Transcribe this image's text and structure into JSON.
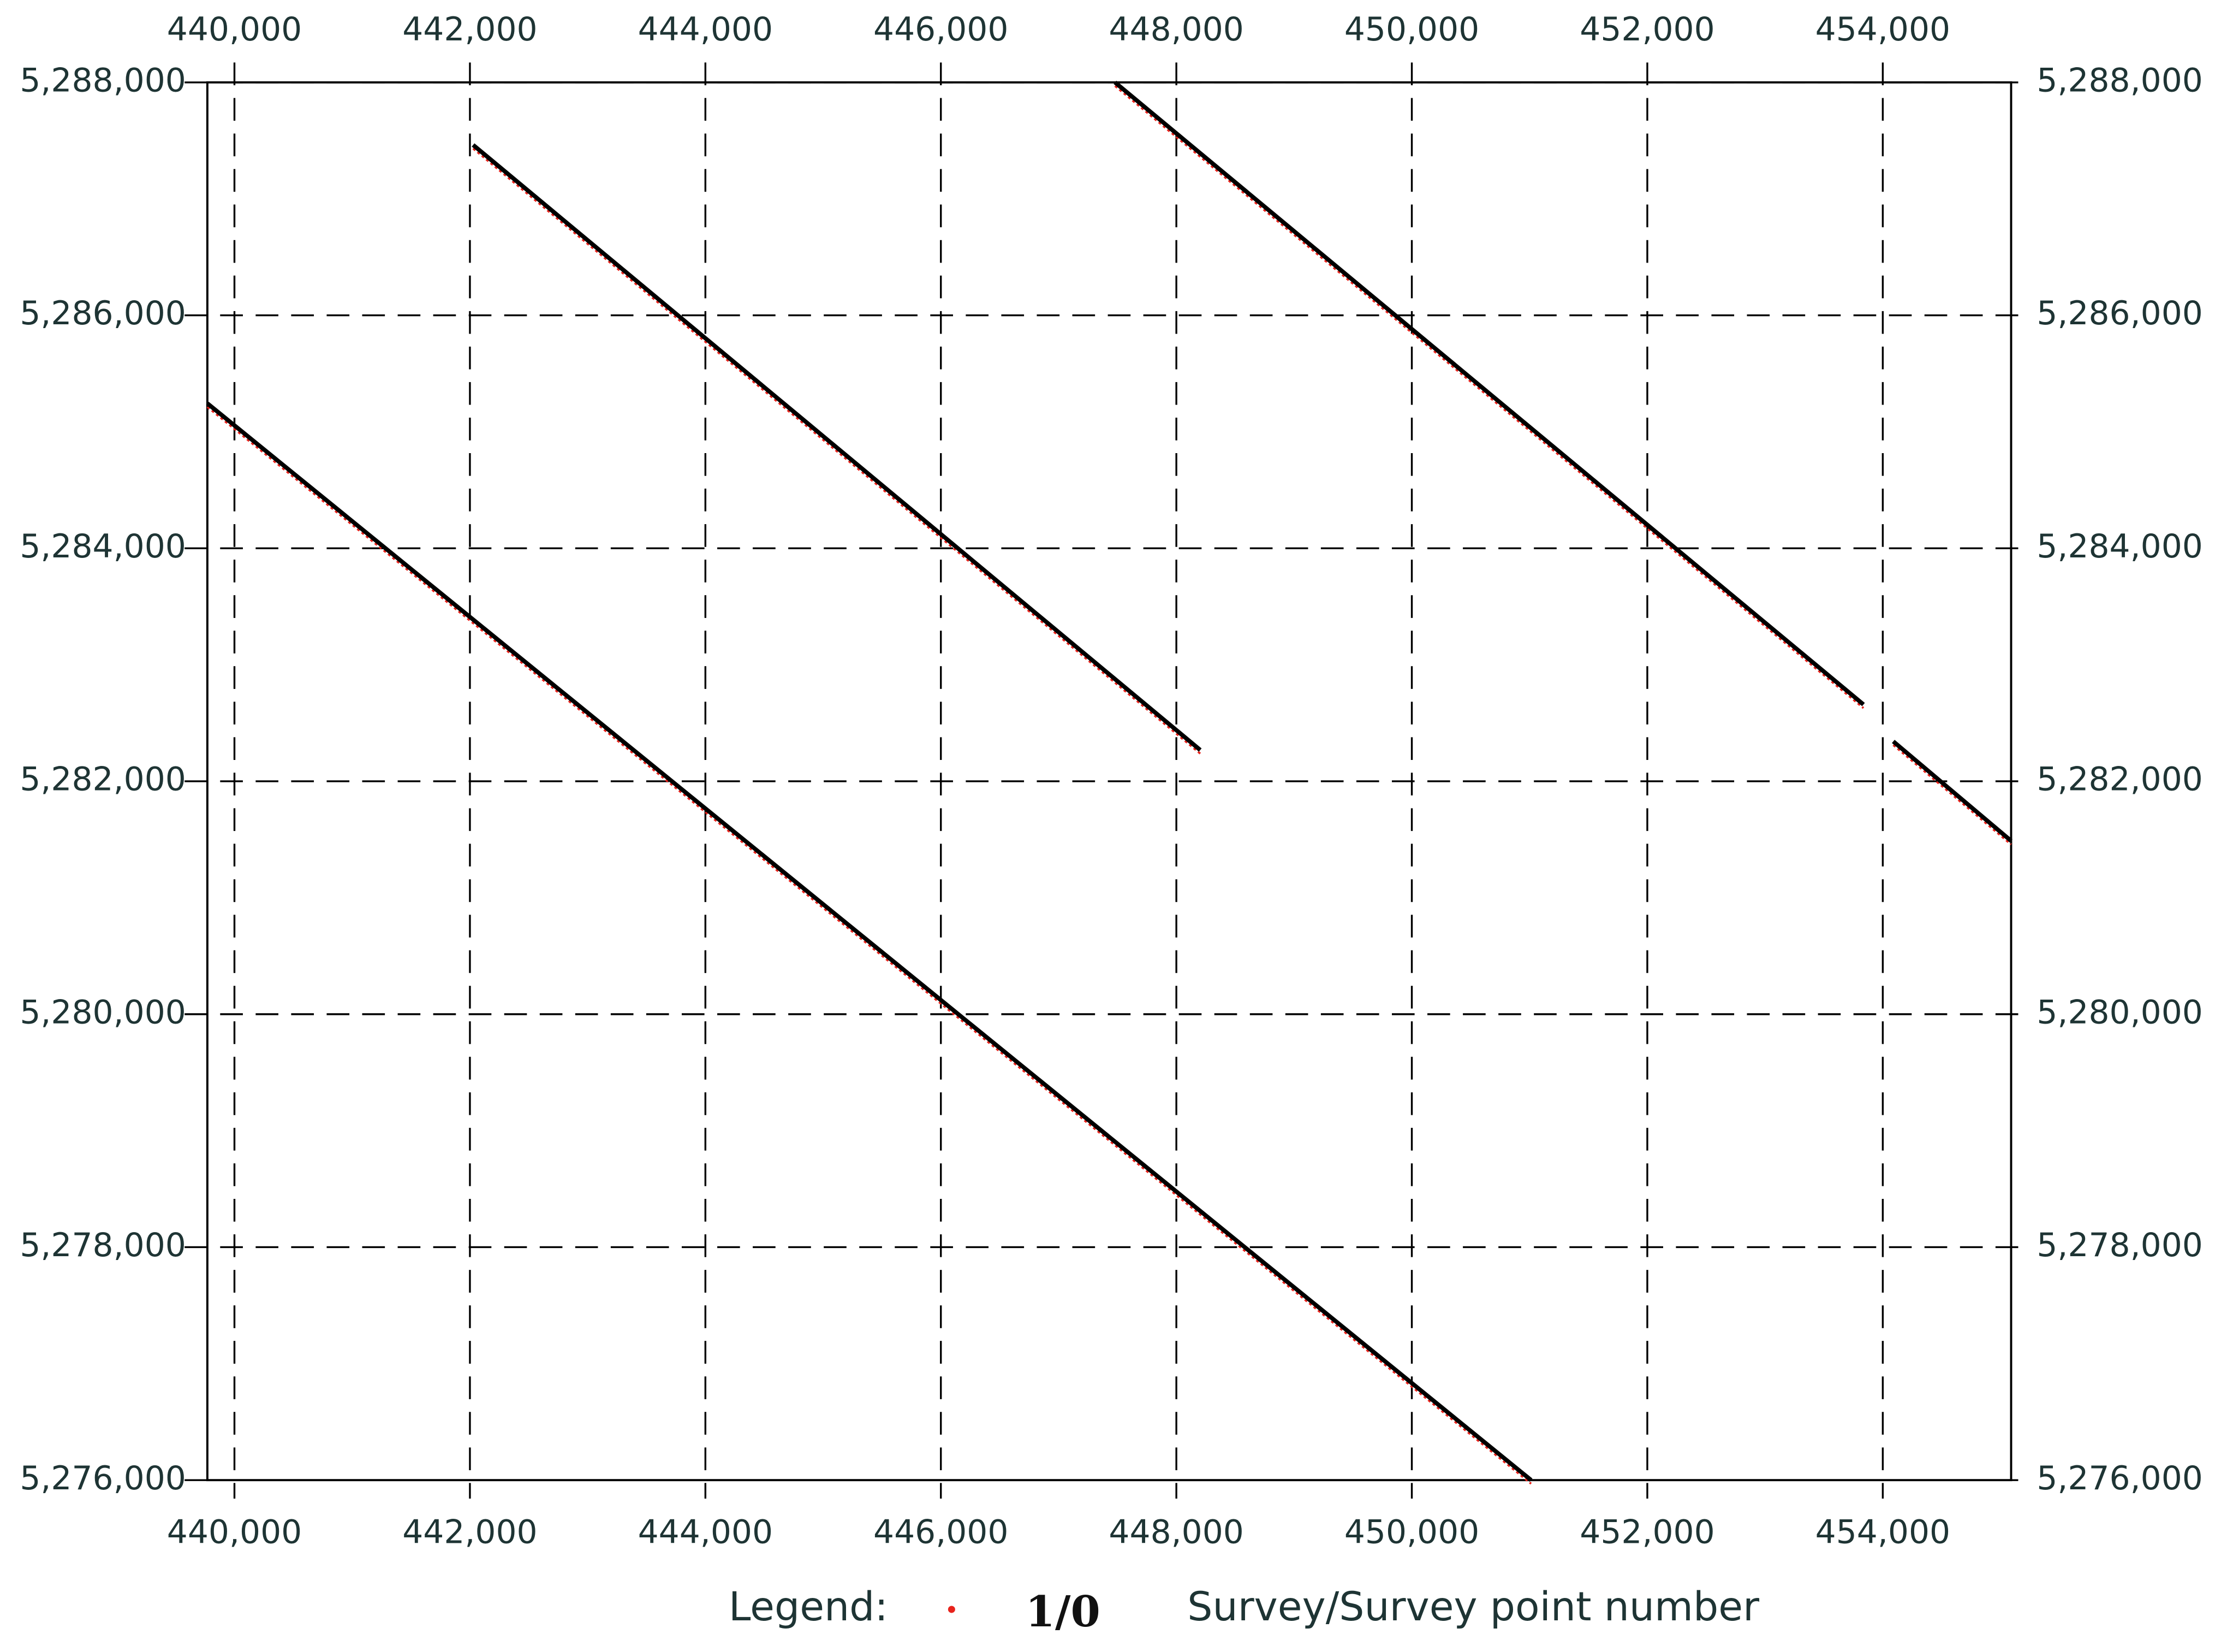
{
  "chart_data": {
    "type": "line",
    "xlim": [
      439770,
      455090
    ],
    "ylim": [
      5276000,
      5288000
    ],
    "xticks": [
      {
        "value": 440000,
        "label": "440,000"
      },
      {
        "value": 442000,
        "label": "442,000"
      },
      {
        "value": 444000,
        "label": "444,000"
      },
      {
        "value": 446000,
        "label": "446,000"
      },
      {
        "value": 448000,
        "label": "448,000"
      },
      {
        "value": 450000,
        "label": "450,000"
      },
      {
        "value": 452000,
        "label": "452,000"
      },
      {
        "value": 454000,
        "label": "454,000"
      }
    ],
    "yticks": [
      {
        "value": 5276000,
        "label": "5,276,000"
      },
      {
        "value": 5278000,
        "label": "5,278,000"
      },
      {
        "value": 5280000,
        "label": "5,280,000"
      },
      {
        "value": 5282000,
        "label": "5,282,000"
      },
      {
        "value": 5284000,
        "label": "5,284,000"
      },
      {
        "value": 5286000,
        "label": "5,286,000"
      },
      {
        "value": 5288000,
        "label": "5,288,000"
      }
    ],
    "grid": true,
    "point_color": "#e8231c",
    "series": [
      {
        "color": "#000000",
        "x": [
          439770,
          451013
        ],
        "values": [
          5285244,
          5276000
        ]
      },
      {
        "color": "#000000",
        "x": [
          442027,
          448203
        ],
        "values": [
          5287463,
          5282268
        ]
      },
      {
        "color": "#000000",
        "x": [
          447479,
          453836
        ],
        "values": [
          5288000,
          5282659
        ]
      },
      {
        "color": "#000000",
        "x": [
          454089,
          455090
        ],
        "values": [
          5282342,
          5281488
        ]
      }
    ],
    "legend": {
      "label": "Legend:",
      "symbol": "1/0",
      "description": "Survey/Survey point number"
    }
  }
}
